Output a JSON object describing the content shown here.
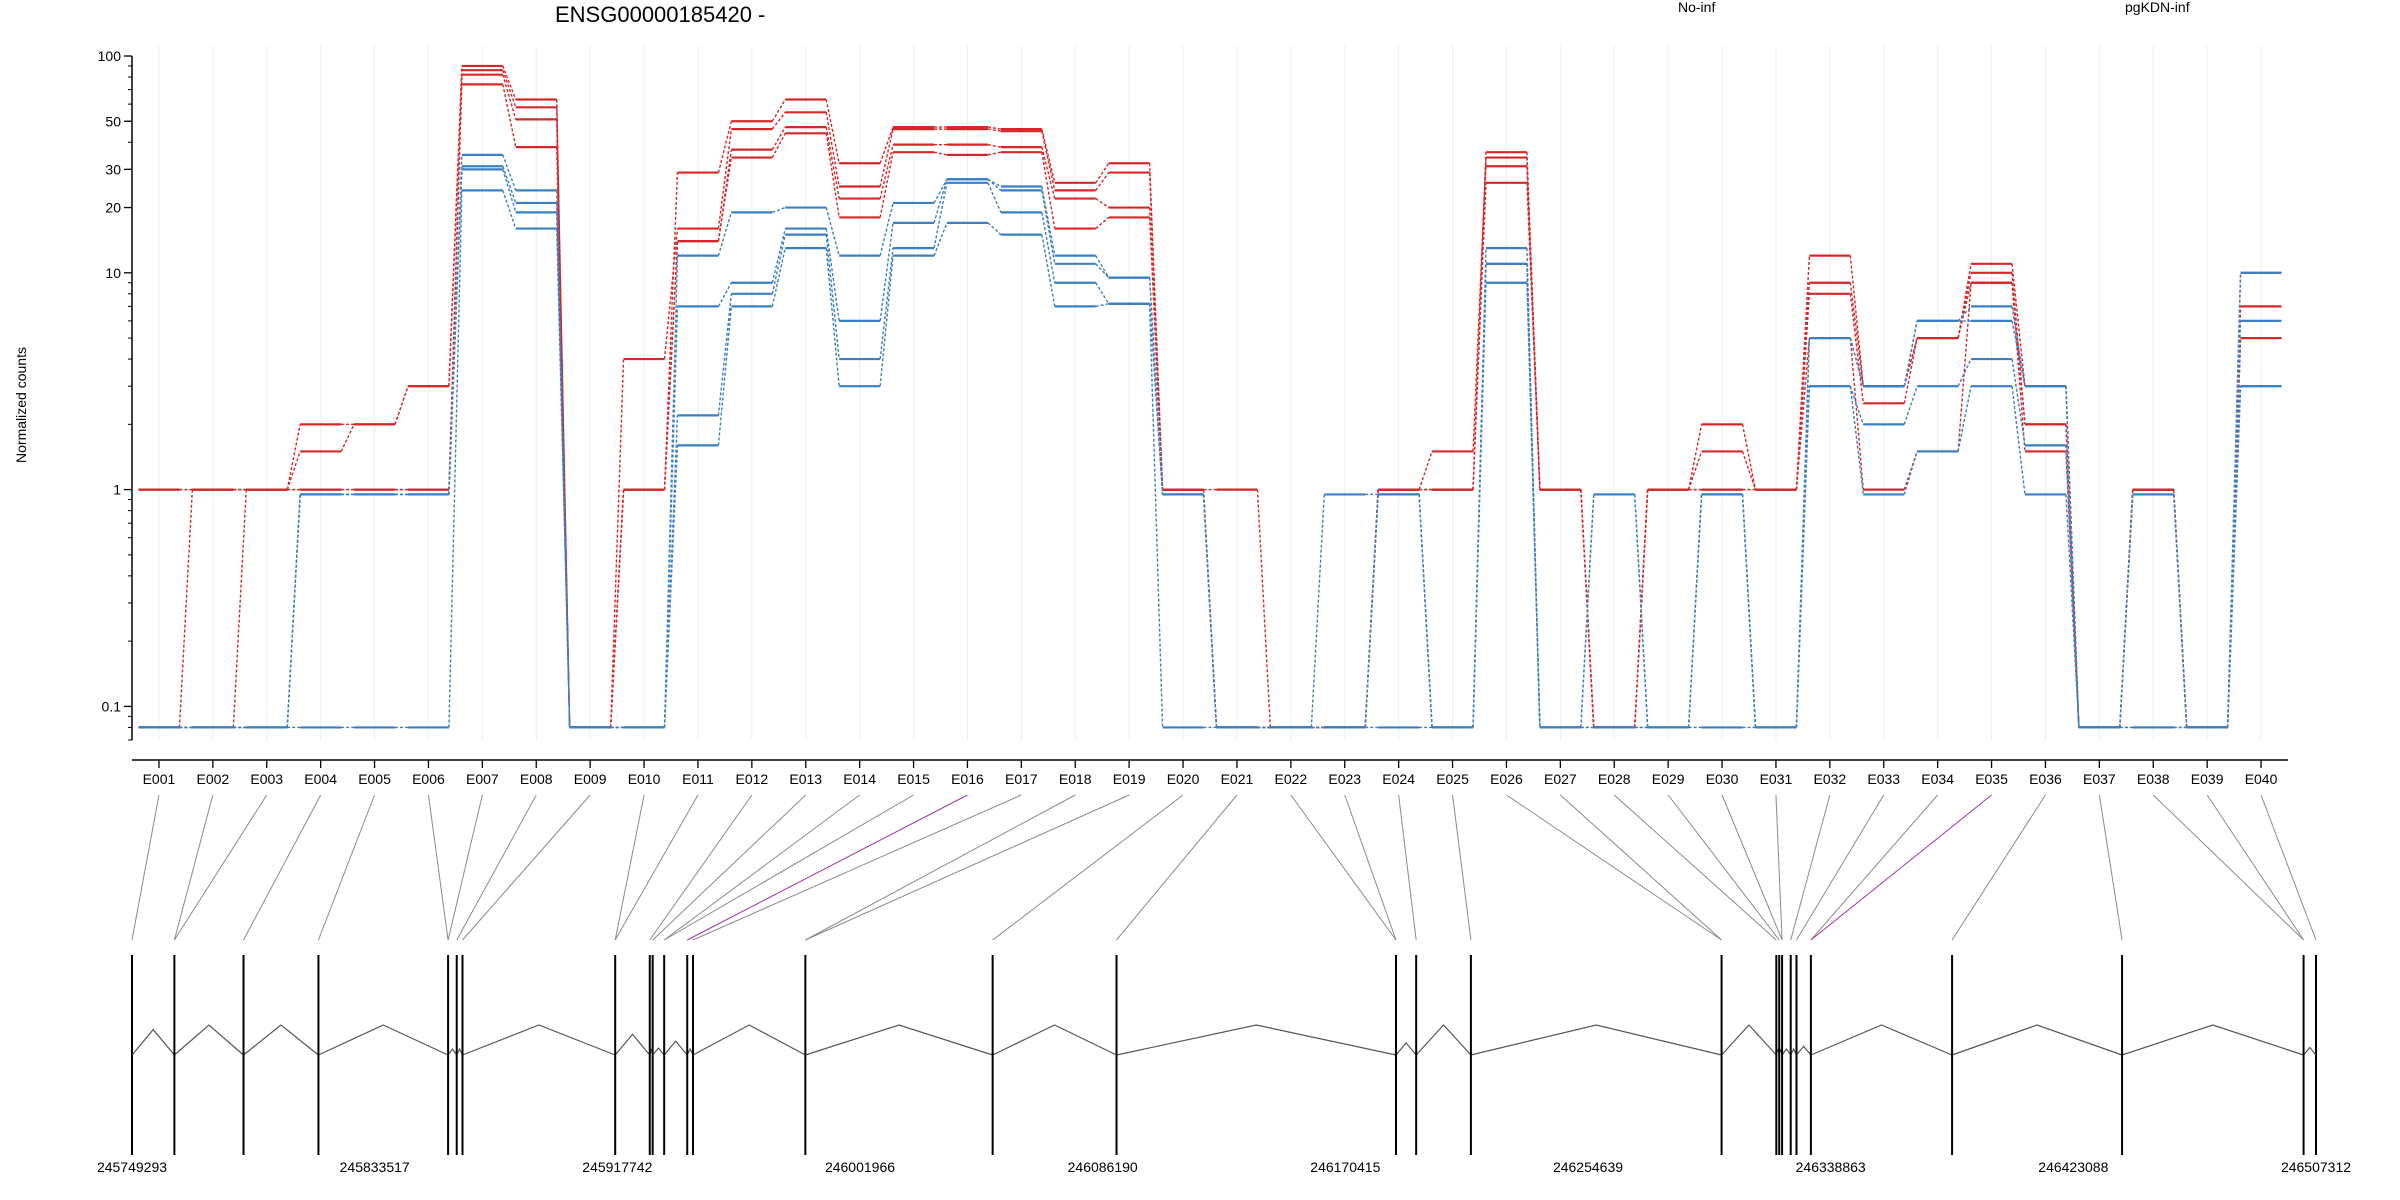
{
  "chart_data": {
    "type": "line",
    "title": "ENSG00000185420 -",
    "ylabel": "Normalized counts",
    "yscale": "log",
    "ylim": [
      0.07,
      100
    ],
    "yticks": [
      "0.1",
      "1",
      "10",
      "20",
      "30",
      "50",
      "100"
    ],
    "legend_position": "top",
    "colors": {
      "No-inf": "#d62728",
      "pgKDN-inf": "#3a7fc2"
    },
    "categories": [
      "E001",
      "E002",
      "E003",
      "E004",
      "E005",
      "E006",
      "E007",
      "E008",
      "E009",
      "E010",
      "E011",
      "E012",
      "E013",
      "E014",
      "E015",
      "E016",
      "E017",
      "E018",
      "E019",
      "E020",
      "E021",
      "E022",
      "E023",
      "E024",
      "E025",
      "E026",
      "E027",
      "E028",
      "E029",
      "E030",
      "E031",
      "E032",
      "E033",
      "E034",
      "E035",
      "E036",
      "E037",
      "E038",
      "E039",
      "E040"
    ],
    "series": [
      {
        "name": "No-inf",
        "group": "No-inf",
        "values": [
          1,
          1,
          1,
          2,
          2,
          3,
          90,
          63,
          0.08,
          1,
          29,
          50,
          63,
          32,
          47,
          47,
          46,
          26,
          32,
          1,
          1,
          0.08,
          0.08,
          1,
          1,
          36,
          1,
          0.08,
          1,
          2,
          1,
          12,
          3,
          5,
          11,
          3,
          0.08,
          1,
          0.08,
          10
        ]
      },
      {
        "name": "No-inf",
        "group": "No-inf",
        "values": [
          1,
          1,
          1,
          1.5,
          2,
          3,
          86,
          58,
          0.08,
          4,
          16,
          46,
          55,
          25,
          46,
          46,
          45,
          24,
          29,
          1,
          0.08,
          0.08,
          0.08,
          1,
          1.5,
          34,
          1,
          0.08,
          1,
          1.5,
          1,
          9,
          3,
          5,
          10,
          2,
          0.08,
          1,
          0.08,
          7
        ]
      },
      {
        "name": "No-inf",
        "group": "No-inf",
        "values": [
          0.08,
          1,
          1,
          1,
          1,
          1,
          82,
          51,
          0.08,
          1,
          14,
          37,
          47,
          22,
          39,
          39,
          38,
          22,
          20,
          1,
          0.08,
          0.08,
          0.08,
          1,
          1,
          31,
          1,
          0.08,
          1,
          1,
          1,
          8,
          2.5,
          5,
          9,
          2,
          0.08,
          1,
          0.08,
          5
        ]
      },
      {
        "name": "No-inf",
        "group": "No-inf",
        "values": [
          0.08,
          0.08,
          1,
          1,
          1,
          1,
          74,
          38,
          0.08,
          1,
          14,
          34,
          44,
          18,
          36,
          35,
          36,
          16,
          18,
          1,
          0.08,
          0.08,
          0.08,
          1,
          1,
          26,
          1,
          0.08,
          1,
          1,
          1,
          5,
          1,
          1.5,
          9,
          1.5,
          0.08,
          1,
          0.08,
          5
        ]
      },
      {
        "name": "pgKDN-inf",
        "group": "pgKDN-inf",
        "values": [
          0.08,
          0.08,
          0.08,
          0.95,
          0.95,
          0.95,
          35,
          24,
          0.08,
          0.08,
          12,
          19,
          20,
          12,
          21,
          27,
          25,
          12,
          9.5,
          0.95,
          0.08,
          0.08,
          0.95,
          0.95,
          0.08,
          13,
          0.08,
          0.95,
          0.08,
          0.95,
          0.08,
          5,
          3,
          6,
          7,
          3,
          0.08,
          0.08,
          0.08,
          10
        ]
      },
      {
        "name": "pgKDN-inf",
        "group": "pgKDN-inf",
        "values": [
          0.08,
          0.08,
          0.08,
          0.95,
          0.95,
          0.95,
          31,
          21,
          0.08,
          0.08,
          7,
          9,
          16,
          6,
          17,
          27,
          24,
          11,
          9.5,
          0.95,
          0.08,
          0.08,
          0.08,
          0.95,
          0.08,
          11,
          0.08,
          0.95,
          0.08,
          0.95,
          0.08,
          5,
          3,
          6,
          6,
          3,
          0.08,
          0.95,
          0.08,
          6
        ]
      },
      {
        "name": "pgKDN-inf",
        "group": "pgKDN-inf",
        "values": [
          0.08,
          0.08,
          0.08,
          0.95,
          0.95,
          0.95,
          30,
          19,
          0.08,
          0.08,
          2.2,
          8,
          15,
          4,
          13,
          26,
          19,
          9,
          7.2,
          0.95,
          0.08,
          0.08,
          0.08,
          0.95,
          0.08,
          11,
          0.08,
          0.08,
          0.08,
          0.95,
          0.08,
          3,
          2,
          3,
          4,
          1.6,
          0.08,
          0.95,
          0.08,
          3
        ]
      },
      {
        "name": "pgKDN-inf",
        "group": "pgKDN-inf",
        "values": [
          0.08,
          0.08,
          0.08,
          0.08,
          0.08,
          0.08,
          24,
          16,
          0.08,
          0.08,
          1.6,
          7,
          13,
          3,
          12,
          17,
          15,
          7,
          7.2,
          0.08,
          0.08,
          0.08,
          0.08,
          0.08,
          0.08,
          9,
          0.08,
          0.08,
          0.08,
          0.08,
          0.08,
          3,
          0.95,
          1.5,
          3,
          0.95,
          0.08,
          0.08,
          0.08,
          3
        ]
      }
    ],
    "gene_model": {
      "coordinate_labels": [
        "245749293",
        "245833517",
        "245917742",
        "246001966",
        "246086190",
        "246170415",
        "246254639",
        "246338863",
        "246423088",
        "246507312"
      ],
      "range": [
        245749293,
        246507312
      ],
      "exon_positions": [
        245749293,
        245764000,
        245788000,
        245814000,
        245859000,
        245862000,
        245864000,
        245917000,
        245929000,
        245930000,
        245934000,
        245942000,
        245944000,
        245983000,
        246048000,
        246091000,
        246188000,
        246195000,
        246214000,
        246301000,
        246320000,
        246321000,
        246322000,
        246325000,
        246327000,
        246332000,
        246381000,
        246440000,
        246503000,
        246507312
      ],
      "highlighted_connector_exons": [
        "E016",
        "E035"
      ],
      "highlight_color": "#a0359c",
      "connector_color": "#8a8a8a"
    }
  }
}
